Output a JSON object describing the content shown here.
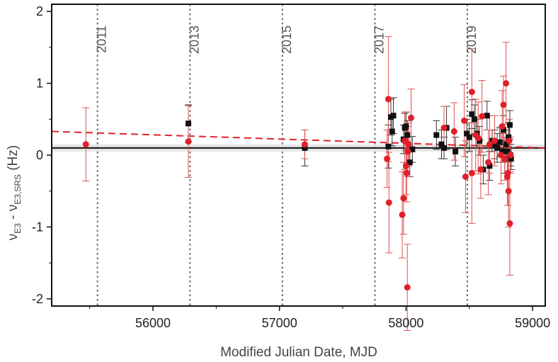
{
  "chart_data": {
    "type": "scatter",
    "xlabel": "Modified Julian Date, MJD",
    "ylabel": {
      "prefix": "ν",
      "sub1": "E3",
      "mid": " - ν",
      "sub2": "E3,SRS",
      "suffix": " (Hz)"
    },
    "xlim": [
      55200,
      59100
    ],
    "ylim": [
      -2.1,
      2.1
    ],
    "xticks": [
      56000,
      57000,
      58000,
      59000
    ],
    "yticks": [
      -2,
      -1,
      0,
      1,
      2
    ],
    "colors": {
      "red": "#e0202a",
      "red_err": "#e05050",
      "black": "#111111",
      "band": "#e6e6e6",
      "vline": "#666666"
    },
    "year_lines": [
      {
        "label": "2011",
        "x": 55562
      },
      {
        "label": "2013",
        "x": 56293
      },
      {
        "label": "2015",
        "x": 57023
      },
      {
        "label": "2017",
        "x": 57754
      },
      {
        "label": "2019",
        "x": 58484
      }
    ],
    "reference_line": {
      "y": 0.1,
      "band": [
        0.05,
        0.15
      ]
    },
    "trend_line": {
      "x": [
        55200,
        59100
      ],
      "y": [
        0.33,
        0.1
      ]
    },
    "series": [
      {
        "marker": "circle",
        "color": "red",
        "points": [
          [
            55470,
            0.15,
            0.51
          ],
          [
            56280,
            0.19,
            0.5
          ],
          [
            57200,
            0.15,
            0.2
          ],
          [
            57850,
            -0.05,
            0.4
          ],
          [
            57860,
            0.78,
            0.87
          ],
          [
            57865,
            -0.66,
            0.7
          ],
          [
            57970,
            -0.83,
            0.6
          ],
          [
            57980,
            -0.6,
            0.5
          ],
          [
            57990,
            0.2,
            0.4
          ],
          [
            58000,
            -0.15,
            0.4
          ],
          [
            58005,
            -0.25,
            0.4
          ],
          [
            58010,
            -1.84,
            0.6
          ],
          [
            58015,
            0.05,
            0.35
          ],
          [
            58020,
            0.15,
            0.3
          ],
          [
            58040,
            0.52,
            0.4
          ],
          [
            58300,
            0.38,
            0.3
          ],
          [
            58380,
            0.33,
            0.4
          ],
          [
            58460,
            0.48,
            0.5
          ],
          [
            58470,
            -0.3,
            0.5
          ],
          [
            58520,
            -0.25,
            0.7
          ],
          [
            58520,
            0.88,
            0.6
          ],
          [
            58550,
            0.28,
            0.5
          ],
          [
            58570,
            0.24,
            0.5
          ],
          [
            58590,
            -0.2,
            0.4
          ],
          [
            58600,
            0.54,
            0.5
          ],
          [
            58650,
            -0.1,
            0.45
          ],
          [
            58660,
            0.15,
            0.4
          ],
          [
            58700,
            0.2,
            0.35
          ],
          [
            58750,
            0.0,
            0.4
          ],
          [
            58760,
            0.4,
            0.5
          ],
          [
            58770,
            0.7,
            0.4
          ],
          [
            58780,
            -0.05,
            0.3
          ],
          [
            58790,
            1.0,
            0.57
          ],
          [
            58800,
            -0.3,
            0.4
          ],
          [
            58805,
            -0.25,
            0.45
          ],
          [
            58810,
            -0.5,
            0.5
          ],
          [
            58815,
            0.2,
            0.3
          ],
          [
            58820,
            -0.95,
            0.72
          ],
          [
            58825,
            0.0,
            0.25
          ]
        ]
      },
      {
        "marker": "square",
        "color": "black",
        "points": [
          [
            56280,
            0.44,
            0.26
          ],
          [
            57200,
            0.1,
            0.25
          ],
          [
            57860,
            0.12,
            0.3
          ],
          [
            57880,
            0.53,
            0.25
          ],
          [
            57890,
            0.33,
            0.2
          ],
          [
            57900,
            0.55,
            0.25
          ],
          [
            57980,
            0.22,
            0.2
          ],
          [
            57990,
            0.38,
            0.2
          ],
          [
            58000,
            0.4,
            0.2
          ],
          [
            58010,
            0.28,
            0.2
          ],
          [
            58030,
            -0.1,
            0.2
          ],
          [
            58050,
            0.08,
            0.18
          ],
          [
            58240,
            0.28,
            0.2
          ],
          [
            58280,
            0.15,
            0.2
          ],
          [
            58300,
            0.1,
            0.15
          ],
          [
            58320,
            0.38,
            0.3
          ],
          [
            58390,
            0.05,
            0.2
          ],
          [
            58480,
            0.3,
            0.2
          ],
          [
            58500,
            0.25,
            0.2
          ],
          [
            58520,
            0.57,
            0.2
          ],
          [
            58540,
            0.5,
            0.2
          ],
          [
            58560,
            0.3,
            0.2
          ],
          [
            58580,
            0.2,
            0.2
          ],
          [
            58610,
            -0.2,
            0.2
          ],
          [
            58640,
            0.55,
            0.2
          ],
          [
            58660,
            -0.15,
            0.2
          ],
          [
            58680,
            0.2,
            0.15
          ],
          [
            58700,
            0.15,
            0.2
          ],
          [
            58720,
            0.1,
            0.2
          ],
          [
            58740,
            0.18,
            0.2
          ],
          [
            58760,
            0.05,
            0.15
          ],
          [
            58770,
            0.35,
            0.2
          ],
          [
            58780,
            -0.05,
            0.2
          ],
          [
            58790,
            0.15,
            0.2
          ],
          [
            58800,
            0.05,
            0.15
          ],
          [
            58810,
            0.25,
            0.2
          ],
          [
            58820,
            0.42,
            0.2
          ],
          [
            58825,
            0.0,
            0.15
          ],
          [
            58830,
            -0.05,
            0.15
          ]
        ]
      }
    ]
  }
}
